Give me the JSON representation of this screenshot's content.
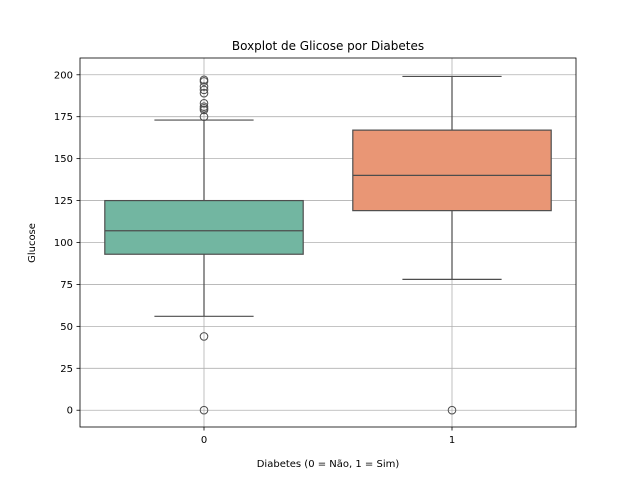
{
  "chart_data": {
    "type": "boxplot",
    "title": "Boxplot de Glicose por Diabetes",
    "xlabel": "Diabetes (0 = Não, 1 = Sim)",
    "ylabel": "Glucose",
    "categories": [
      "0",
      "1"
    ],
    "ylim": [
      -10,
      210
    ],
    "yticks": [
      0,
      25,
      50,
      75,
      100,
      125,
      150,
      175,
      200
    ],
    "grid": true,
    "boxes": [
      {
        "category": "0",
        "color": "#72b6a1",
        "whisker_low": 56,
        "q1": 93,
        "median": 107,
        "q3": 125,
        "whisker_high": 173,
        "outliers": [
          0,
          44,
          175,
          179,
          180,
          181,
          183,
          189,
          191,
          193,
          196,
          197
        ]
      },
      {
        "category": "1",
        "color": "#e99675",
        "whisker_low": 78,
        "q1": 119,
        "median": 140,
        "q3": 167,
        "whisker_high": 199,
        "outliers": [
          0
        ]
      }
    ]
  }
}
